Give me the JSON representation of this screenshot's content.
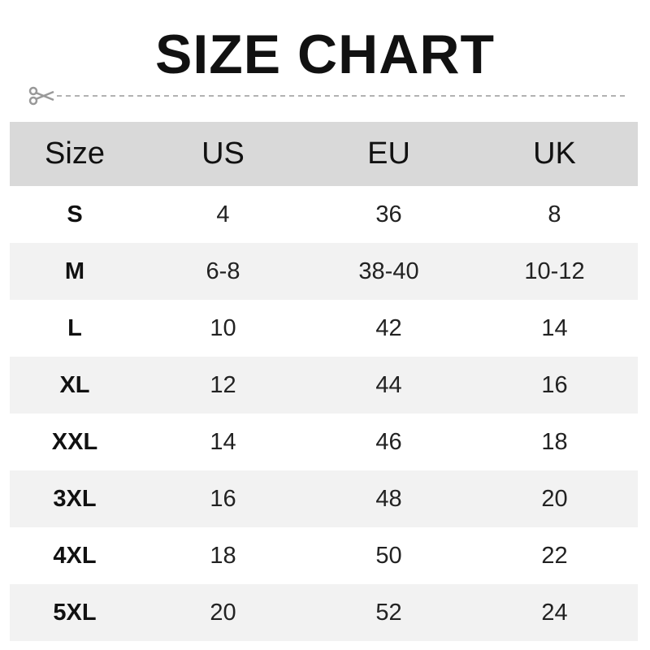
{
  "title": "SIZE CHART",
  "columns": [
    "Size",
    "US",
    "EU",
    "UK"
  ],
  "rows": [
    [
      "S",
      "4",
      "36",
      "8"
    ],
    [
      "M",
      "6-8",
      "38-40",
      "10-12"
    ],
    [
      "L",
      "10",
      "42",
      "14"
    ],
    [
      "XL",
      "12",
      "44",
      "16"
    ],
    [
      "XXL",
      "14",
      "46",
      "18"
    ],
    [
      "3XL",
      "16",
      "48",
      "20"
    ],
    [
      "4XL",
      "18",
      "50",
      "22"
    ],
    [
      "5XL",
      "20",
      "52",
      "24"
    ]
  ],
  "colors": {
    "header_bg": "#d9d9d9",
    "alt_row_bg": "#f2f2f2",
    "cut_line": "#999999"
  }
}
